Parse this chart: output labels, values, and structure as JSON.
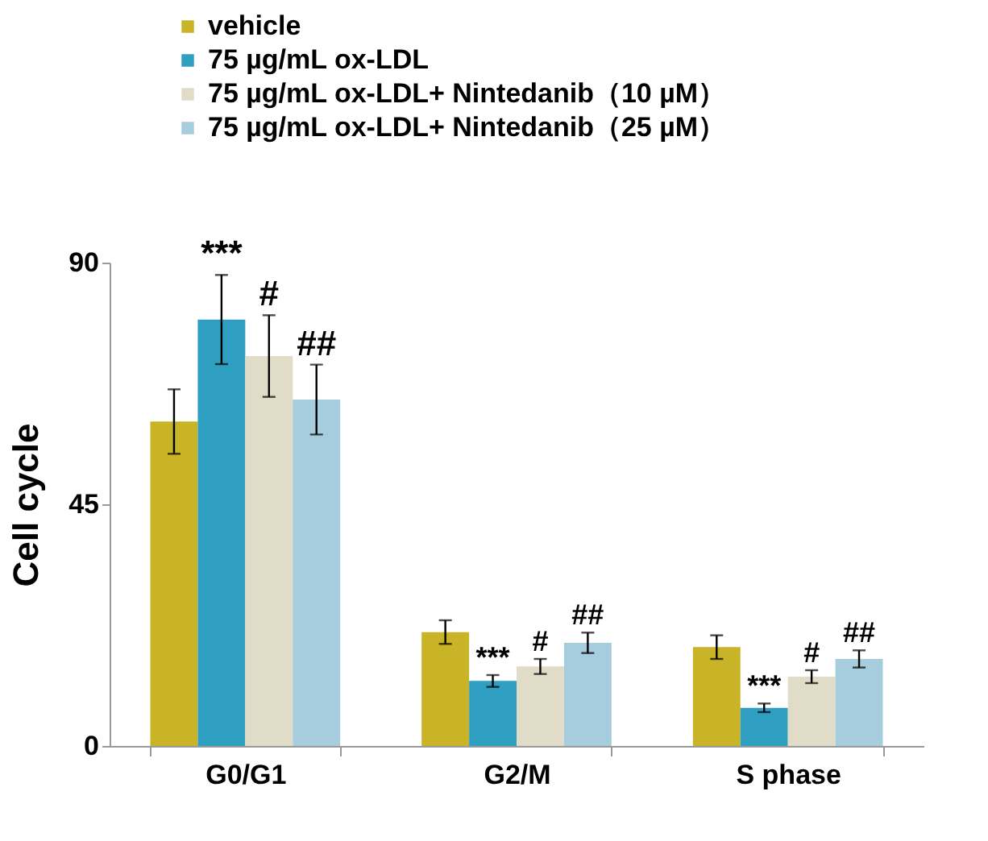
{
  "chart_data": {
    "type": "bar",
    "ylabel": "Cell cycle",
    "categories": [
      "G0/G1",
      "G2/M",
      "S phase"
    ],
    "series": [
      {
        "name": "vehicle",
        "color": "#c8b426",
        "values": [
          60.4,
          21.2,
          18.4
        ],
        "errors": [
          6.0,
          2.2,
          2.2
        ]
      },
      {
        "name": "75 µg/mL ox-LDL",
        "color": "#2e9fc0",
        "values": [
          79.4,
          12.1,
          7.1
        ],
        "errors": [
          8.3,
          1.1,
          0.8
        ]
      },
      {
        "name": "75 µg/mL ox-LDL+ Nintedanib（10 µM）",
        "color": "#e0dcc8",
        "values": [
          72.6,
          14.8,
          12.9
        ],
        "errors": [
          7.6,
          1.4,
          1.2
        ]
      },
      {
        "name": "75 µg/mL ox-LDL+ Nintedanib（25 µM）",
        "color": "#a6cddd",
        "values": [
          64.5,
          19.2,
          16.2
        ],
        "errors": [
          6.5,
          1.9,
          1.6
        ]
      }
    ],
    "annotations": [
      "***",
      "#",
      "##",
      "***",
      "#",
      "##",
      "***",
      "#",
      "##"
    ],
    "ylim": [
      0,
      90
    ],
    "yticks": [
      0,
      45,
      90
    ],
    "grid": false,
    "legend": "top"
  }
}
